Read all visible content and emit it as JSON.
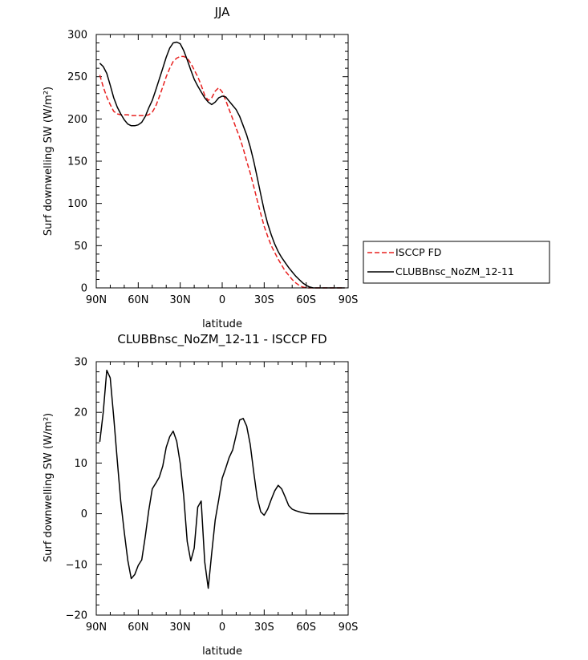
{
  "chart_data": [
    {
      "type": "line",
      "title": "JJA",
      "xlabel": "latitude",
      "ylabel": "Surf downwelling SW (W/m²)",
      "xlim": [
        90,
        -90
      ],
      "ylim": [
        0,
        300
      ],
      "xticks": [
        90,
        60,
        30,
        0,
        -30,
        -60,
        -90
      ],
      "xtick_labels": [
        "90N",
        "60N",
        "30N",
        "0",
        "30S",
        "60S",
        "90S"
      ],
      "yticks": [
        0,
        50,
        100,
        150,
        200,
        250,
        300
      ],
      "ytick_labels": [
        "0",
        "50",
        "100",
        "150",
        "200",
        "250",
        "300"
      ],
      "legend": "right",
      "series": [
        {
          "name": "ISCCP FD",
          "color": "#e8201f",
          "dash": "dashed",
          "x": [
            87.5,
            85,
            82.5,
            80,
            77.5,
            75,
            72.5,
            70,
            67.5,
            65,
            62.5,
            60,
            57.5,
            55,
            52.5,
            50,
            47.5,
            45,
            42.5,
            40,
            37.5,
            35,
            32.5,
            30,
            27.5,
            25,
            22.5,
            20,
            17.5,
            15,
            12.5,
            10,
            7.5,
            5,
            2.5,
            0,
            -2.5,
            -5,
            -7.5,
            -10,
            -12.5,
            -15,
            -17.5,
            -20,
            -22.5,
            -25,
            -27.5,
            -30,
            -32.5,
            -35,
            -37.5,
            -40,
            -42.5,
            -45,
            -47.5,
            -50,
            -52.5,
            -55,
            -57.5,
            -60,
            -62.5,
            -65,
            -67.5,
            -70,
            -72.5,
            -75,
            -77.5,
            -80,
            -82.5,
            -85,
            -87.5
          ],
          "y": [
            252,
            238,
            226,
            217,
            209,
            206,
            205,
            205,
            205,
            204,
            204,
            204,
            204,
            204,
            205,
            208,
            215,
            226,
            238,
            250,
            260,
            268,
            272,
            274,
            274,
            272,
            266,
            258,
            250,
            240,
            228,
            222,
            225,
            233,
            237,
            232,
            222,
            211,
            200,
            189,
            178,
            165,
            150,
            136,
            120,
            104,
            88,
            73,
            61,
            50,
            42,
            34,
            27,
            20,
            15,
            10,
            6,
            3,
            1,
            0,
            0,
            0,
            0,
            0,
            0,
            0,
            0,
            0,
            0,
            0,
            0
          ]
        },
        {
          "name": "CLUBBnsc_NoZM_12-11",
          "color": "#000000",
          "dash": "solid",
          "x": [
            87.5,
            85,
            82.5,
            80,
            77.5,
            75,
            72.5,
            70,
            67.5,
            65,
            62.5,
            60,
            57.5,
            55,
            52.5,
            50,
            47.5,
            45,
            42.5,
            40,
            37.5,
            35,
            32.5,
            30,
            27.5,
            25,
            22.5,
            20,
            17.5,
            15,
            12.5,
            10,
            7.5,
            5,
            2.5,
            0,
            -2.5,
            -5,
            -7.5,
            -10,
            -12.5,
            -15,
            -17.5,
            -20,
            -22.5,
            -25,
            -27.5,
            -30,
            -32.5,
            -35,
            -37.5,
            -40,
            -42.5,
            -45,
            -47.5,
            -50,
            -52.5,
            -55,
            -57.5,
            -60,
            -62.5,
            -65,
            -67.5,
            -70,
            -72.5,
            -75,
            -77.5,
            -80,
            -82.5,
            -85,
            -87.5
          ],
          "y": [
            266,
            262,
            254,
            240,
            225,
            214,
            206,
            199,
            194,
            192,
            192,
            193,
            196,
            203,
            213,
            222,
            234,
            247,
            260,
            273,
            284,
            290,
            291,
            289,
            281,
            270,
            258,
            247,
            239,
            232,
            225,
            220,
            217,
            220,
            225,
            227,
            226,
            221,
            216,
            211,
            203,
            192,
            181,
            167,
            150,
            131,
            111,
            92,
            76,
            63,
            52,
            43,
            36,
            30,
            24,
            19,
            14,
            10,
            6,
            3,
            1,
            0,
            0,
            0,
            0,
            0,
            0,
            0,
            0,
            0,
            0
          ]
        }
      ]
    },
    {
      "type": "line",
      "title": "CLUBBnsc_NoZM_12-11 - ISCCP FD",
      "xlabel": "latitude",
      "ylabel": "Surf downwelling SW (W/m²)",
      "xlim": [
        90,
        -90
      ],
      "ylim": [
        -20,
        30
      ],
      "xticks": [
        90,
        60,
        30,
        0,
        -30,
        -60,
        -90
      ],
      "xtick_labels": [
        "90N",
        "60N",
        "30N",
        "0",
        "30S",
        "60S",
        "90S"
      ],
      "yticks": [
        -20,
        -10,
        0,
        10,
        20,
        30
      ],
      "ytick_labels": [
        "−20",
        "−10",
        "0",
        "10",
        "20",
        "30"
      ],
      "series": [
        {
          "color": "#000000",
          "dash": "solid",
          "x": [
            87.5,
            85,
            82.5,
            80,
            77.5,
            75,
            72.5,
            70,
            67.5,
            65,
            62.5,
            60,
            57.5,
            55,
            52.5,
            50,
            47.5,
            45,
            42.5,
            40,
            37.5,
            35,
            32.5,
            30,
            27.5,
            25,
            22.5,
            20,
            17.5,
            15,
            12.5,
            10,
            7.5,
            5,
            2.5,
            0,
            -2.5,
            -5,
            -7.5,
            -10,
            -12.5,
            -15,
            -17.5,
            -20,
            -22.5,
            -25,
            -27.5,
            -30,
            -32.5,
            -35,
            -37.5,
            -40,
            -42.5,
            -45,
            -47.5,
            -50,
            -52.5,
            -55,
            -57.5,
            -60,
            -62.5,
            -65,
            -67.5,
            -70,
            -72.5,
            -75,
            -77.5,
            -80,
            -82.5,
            -85,
            -87.5
          ],
          "y": [
            14.2,
            20,
            28.3,
            26.8,
            19,
            10.5,
            2.5,
            -3.6,
            -9.2,
            -12.8,
            -12,
            -10.2,
            -9.1,
            -4.5,
            0.6,
            4.9,
            6,
            7.2,
            9.4,
            13.1,
            15.2,
            16.3,
            14.3,
            9.9,
            3.5,
            -5.5,
            -9.3,
            -6.8,
            1.3,
            2.5,
            -9.5,
            -14.7,
            -7.8,
            -1.2,
            2.7,
            7,
            9,
            11.1,
            12.6,
            15.5,
            18.5,
            18.8,
            17.3,
            13.7,
            8.2,
            3.2,
            0.4,
            -0.3,
            0.9,
            2.8,
            4.5,
            5.6,
            4.9,
            3.3,
            1.6,
            0.9,
            0.6,
            0.4,
            0.2,
            0.1,
            0,
            0,
            0,
            0,
            0,
            0,
            0,
            0,
            0,
            0,
            0
          ]
        }
      ]
    }
  ]
}
